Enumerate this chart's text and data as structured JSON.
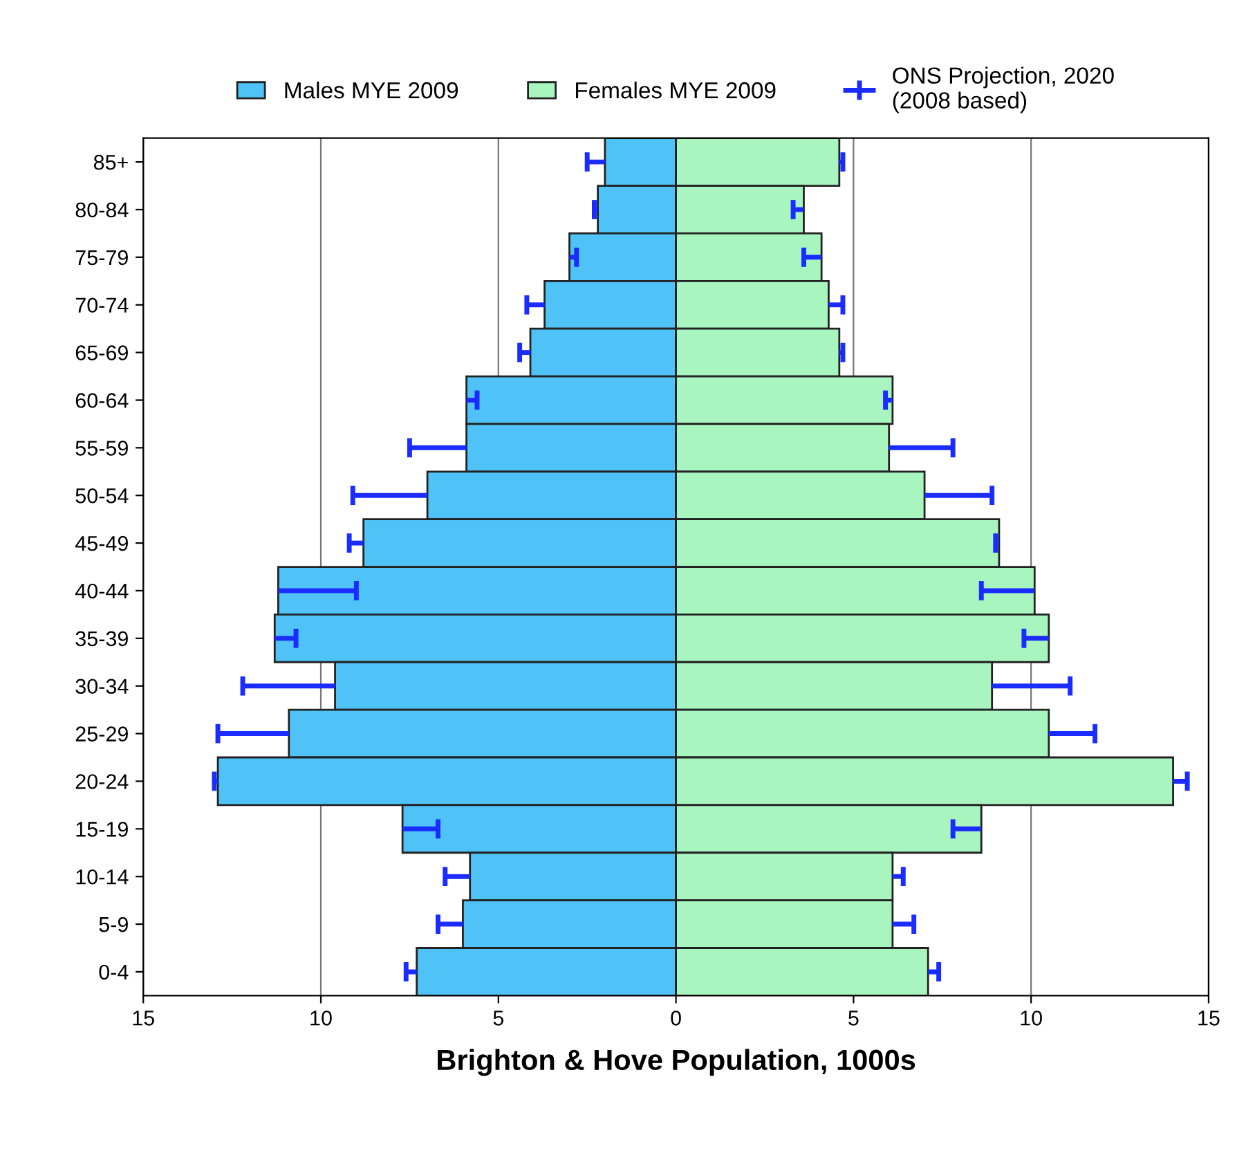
{
  "chart_data": {
    "type": "bar",
    "orientation": "horizontal",
    "stacked": true,
    "xlabel": "Brighton & Hove Population, 1000s",
    "categories": [
      "85+",
      "80-84",
      "75-79",
      "70-74",
      "65-69",
      "60-64",
      "55-59",
      "50-54",
      "45-49",
      "40-44",
      "35-39",
      "30-34",
      "25-29",
      "20-24",
      "15-19",
      "10-14",
      "5-9",
      "0-4"
    ],
    "series": [
      {
        "name": "Males MYE 2009",
        "color": "#4fc3f7",
        "values": [
          -2.0,
          -2.2,
          -3.0,
          -3.7,
          -4.1,
          -5.9,
          -5.9,
          -7.0,
          -8.8,
          -11.2,
          -11.3,
          -9.6,
          -10.9,
          -12.9,
          -7.7,
          -5.8,
          -6.0,
          -7.3
        ],
        "errors": [
          [
            -2.5,
            -2.0
          ],
          [
            -2.3,
            -2.2
          ],
          [
            -3.0,
            -2.8
          ],
          [
            -4.2,
            -3.7
          ],
          [
            -4.4,
            -4.1
          ],
          [
            -5.9,
            -5.6
          ],
          [
            -7.5,
            -5.9
          ],
          [
            -9.1,
            -7.0
          ],
          [
            -9.2,
            -8.8
          ],
          [
            -11.2,
            -9.0
          ],
          [
            -11.3,
            -10.7
          ],
          [
            -12.2,
            -9.6
          ],
          [
            -12.9,
            -10.9
          ],
          [
            -13.0,
            -12.9
          ],
          [
            -7.7,
            -6.7
          ],
          [
            -6.5,
            -5.8
          ],
          [
            -6.7,
            -6.0
          ],
          [
            -7.6,
            -7.3
          ]
        ]
      },
      {
        "name": "Females MYE 2009",
        "color": "#a8f5c0",
        "values": [
          4.6,
          3.6,
          4.1,
          4.3,
          4.6,
          6.1,
          6.0,
          7.0,
          9.1,
          10.1,
          10.5,
          8.9,
          10.5,
          14.0,
          8.6,
          6.1,
          6.1,
          7.1
        ],
        "errors": [
          [
            4.6,
            4.7
          ],
          [
            3.3,
            3.6
          ],
          [
            3.6,
            4.1
          ],
          [
            4.3,
            4.7
          ],
          [
            4.6,
            4.7
          ],
          [
            5.9,
            6.1
          ],
          [
            6.0,
            7.8
          ],
          [
            7.0,
            8.9
          ],
          [
            9.0,
            9.1
          ],
          [
            8.6,
            10.1
          ],
          [
            9.8,
            10.5
          ],
          [
            8.9,
            11.1
          ],
          [
            10.5,
            11.8
          ],
          [
            14.0,
            14.4
          ],
          [
            7.8,
            8.6
          ],
          [
            6.1,
            6.4
          ],
          [
            6.1,
            6.7
          ],
          [
            7.1,
            7.4
          ]
        ]
      }
    ],
    "annotations": [
      "ONS Projection, 2020\n(2008 based)"
    ],
    "xlim": [
      -15,
      15
    ],
    "xticks": [
      {
        "value": -15,
        "label": "15"
      },
      {
        "value": -10,
        "label": "10"
      },
      {
        "value": -5,
        "label": "5"
      },
      0,
      5,
      10,
      15
    ],
    "grid": "x",
    "legend": "top"
  }
}
